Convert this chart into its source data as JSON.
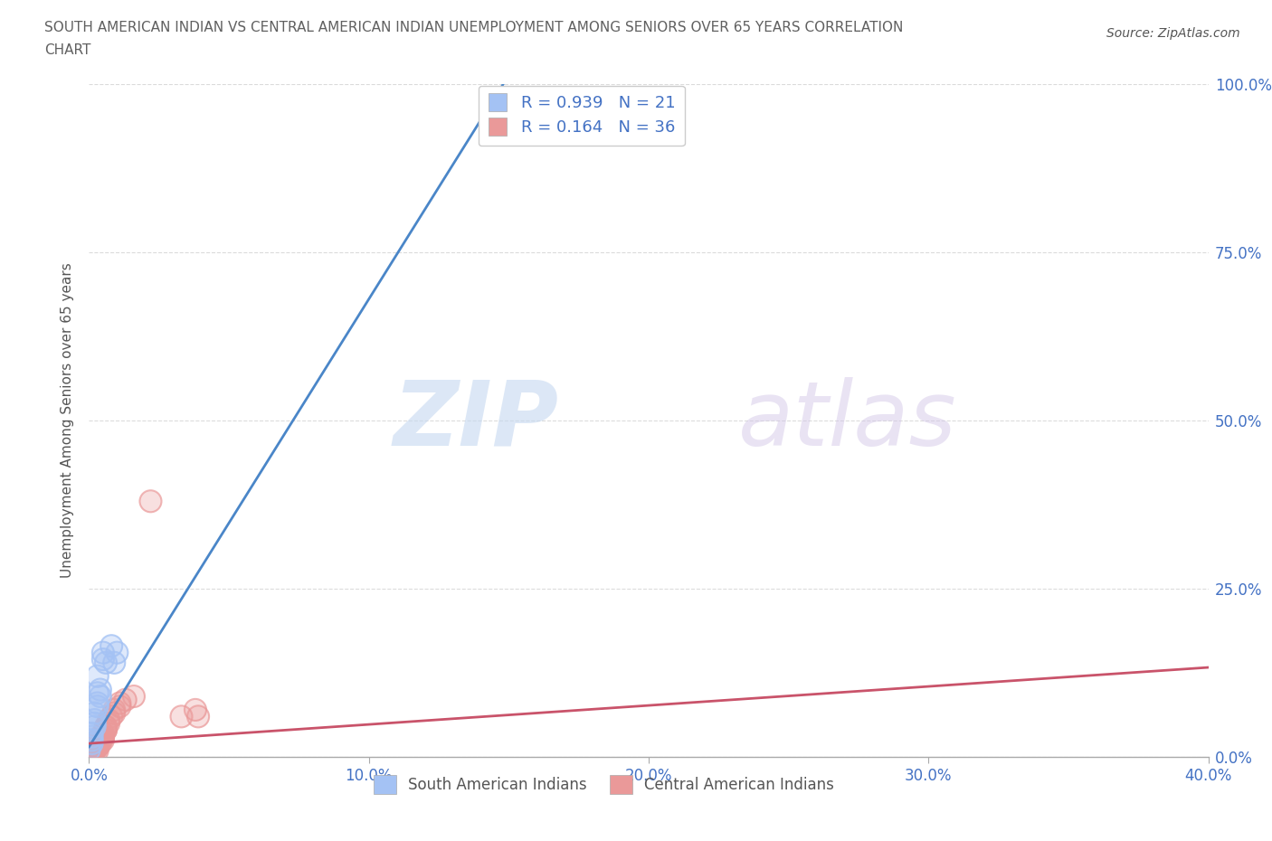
{
  "title_line1": "SOUTH AMERICAN INDIAN VS CENTRAL AMERICAN INDIAN UNEMPLOYMENT AMONG SENIORS OVER 65 YEARS CORRELATION",
  "title_line2": "CHART",
  "source": "Source: ZipAtlas.com",
  "ylabel": "Unemployment Among Seniors over 65 years",
  "xlim": [
    0.0,
    0.4
  ],
  "ylim": [
    0.0,
    1.0
  ],
  "xticks": [
    0.0,
    0.1,
    0.2,
    0.3,
    0.4
  ],
  "yticks": [
    0.0,
    0.25,
    0.5,
    0.75,
    1.0
  ],
  "xticklabels": [
    "0.0%",
    "10.0%",
    "20.0%",
    "30.0%",
    "40.0%"
  ],
  "yticklabels": [
    "0.0%",
    "25.0%",
    "50.0%",
    "75.0%",
    "100.0%"
  ],
  "blue_color": "#a4c2f4",
  "pink_color": "#ea9999",
  "blue_line_color": "#4a86c8",
  "pink_line_color": "#c9536a",
  "R_blue": 0.939,
  "N_blue": 21,
  "R_pink": 0.164,
  "N_pink": 36,
  "legend_label_blue": "South American Indians",
  "legend_label_pink": "Central American Indians",
  "watermark_zip": "ZIP",
  "watermark_atlas": "atlas",
  "blue_line_x0": 0.0,
  "blue_line_y0": 0.015,
  "blue_line_x1": 0.148,
  "blue_line_y1": 1.0,
  "pink_line_x0": 0.0,
  "pink_line_y0": 0.02,
  "pink_line_x1": 0.4,
  "pink_line_y1": 0.133,
  "blue_scatter_x": [
    0.005,
    0.008,
    0.002,
    0.001,
    0.003,
    0.006,
    0.004,
    0.002,
    0.001,
    0.003,
    0.002,
    0.004,
    0.001,
    0.003,
    0.002,
    0.005,
    0.001,
    0.0,
    0.003,
    0.01,
    0.009
  ],
  "blue_scatter_y": [
    0.155,
    0.165,
    0.065,
    0.035,
    0.12,
    0.14,
    0.09,
    0.045,
    0.02,
    0.08,
    0.055,
    0.1,
    0.03,
    0.075,
    0.05,
    0.145,
    0.025,
    0.01,
    0.095,
    0.155,
    0.14
  ],
  "pink_scatter_x": [
    0.0,
    0.002,
    0.003,
    0.004,
    0.005,
    0.006,
    0.002,
    0.003,
    0.004,
    0.005,
    0.006,
    0.007,
    0.008,
    0.009,
    0.011,
    0.013,
    0.016,
    0.022,
    0.003,
    0.004,
    0.005,
    0.006,
    0.002,
    0.003,
    0.004,
    0.007,
    0.009,
    0.011,
    0.033,
    0.038,
    0.003,
    0.004,
    0.002,
    0.005,
    0.006,
    0.039
  ],
  "pink_scatter_y": [
    0.01,
    0.015,
    0.02,
    0.025,
    0.03,
    0.04,
    0.01,
    0.015,
    0.025,
    0.03,
    0.045,
    0.05,
    0.06,
    0.065,
    0.075,
    0.085,
    0.09,
    0.38,
    0.01,
    0.02,
    0.025,
    0.04,
    0.015,
    0.025,
    0.03,
    0.055,
    0.07,
    0.08,
    0.06,
    0.07,
    0.015,
    0.025,
    0.01,
    0.035,
    0.045,
    0.06
  ],
  "background_color": "#ffffff",
  "grid_color": "#cccccc",
  "title_color": "#606060",
  "tick_color": "#4472c4"
}
